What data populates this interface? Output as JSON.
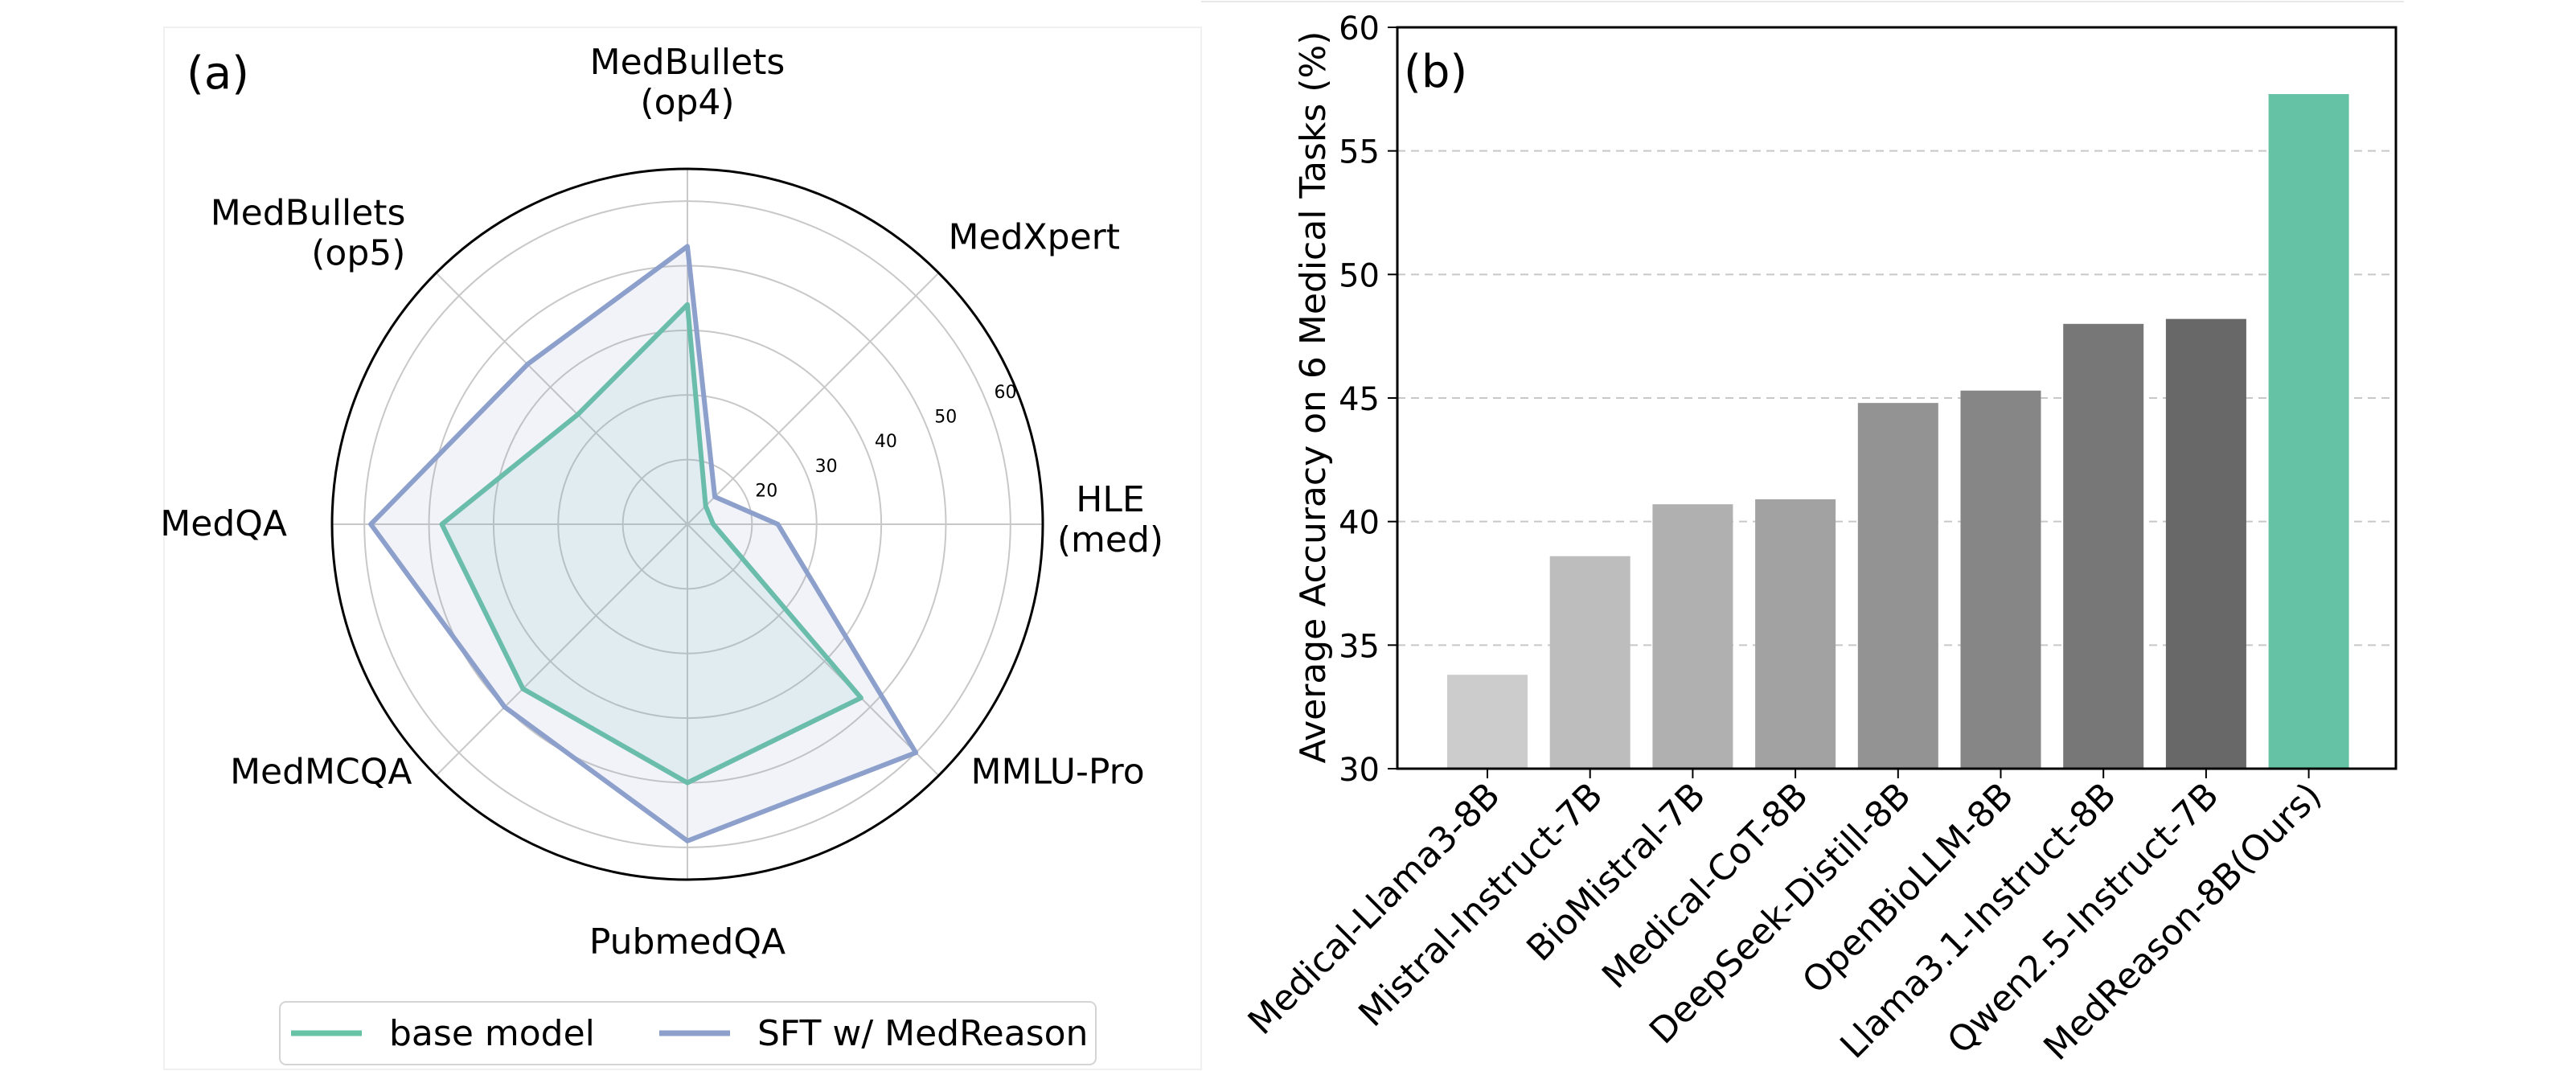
{
  "chart_data": [
    {
      "type": "radar",
      "panel_label": "(a)",
      "axes": [
        "MedBullets\n(op4)",
        "MedXpert",
        "HLE\n(med)",
        "MMLU-Pro",
        "PubmedQA",
        "MedMCQA",
        "MedQA",
        "MedBullets\n(op5)"
      ],
      "radial_ticks": [
        20,
        30,
        40,
        50,
        60
      ],
      "radial_tick_labels": [
        "20",
        "30",
        "40",
        "50",
        "60"
      ],
      "r_range": [
        10,
        65
      ],
      "series": [
        {
          "name": "base model",
          "color": "#66c2a5",
          "values": [
            44,
            14,
            14,
            48,
            50,
            46,
            48,
            34
          ]
        },
        {
          "name": "SFT w/ MedReason",
          "color": "#8da0cb",
          "values": [
            53,
            16,
            24,
            60,
            59,
            50,
            59,
            45
          ]
        }
      ],
      "legend": {
        "position": "bottom",
        "entries": [
          "base model",
          "SFT w/ MedReason"
        ]
      }
    },
    {
      "type": "bar",
      "panel_label": "(b)",
      "ylabel": "Average Accuracy on 6 Medical Tasks (%)",
      "ylim": [
        30,
        60
      ],
      "yticks": [
        30,
        35,
        40,
        45,
        50,
        55,
        60
      ],
      "ytick_labels": [
        "30",
        "35",
        "40",
        "45",
        "50",
        "55",
        "60"
      ],
      "grid": "y-dashed",
      "categories": [
        "Medical-Llama3-8B",
        "Mistral-Instruct-7B",
        "BioMistral-7B",
        "Medical-CoT-8B",
        "DeepSeek-Distill-8B",
        "OpenBioLLM-8B",
        "Llama3.1-Instruct-8B",
        "Qwen2.5-Instruct-7B",
        "MedReason-8B(Ours)"
      ],
      "values": [
        33.8,
        38.6,
        40.7,
        40.9,
        44.8,
        45.3,
        48.0,
        48.2,
        57.3
      ],
      "colors": [
        "#cccccc",
        "#bdbdbd",
        "#b0b0b0",
        "#a2a2a2",
        "#939393",
        "#868686",
        "#777777",
        "#686868",
        "#66c2a5"
      ]
    }
  ]
}
